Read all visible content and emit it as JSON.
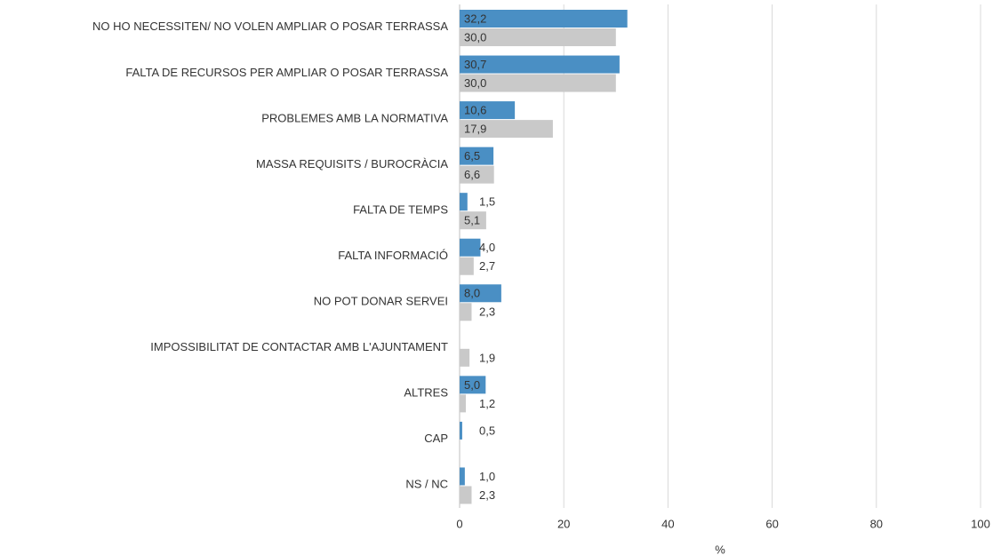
{
  "chart_data": {
    "type": "hbar",
    "categories": [
      "NO HO NECESSITEN/ NO VOLEN AMPLIAR O POSAR TERRASSA",
      "FALTA DE RECURSOS PER AMPLIAR O POSAR TERRASSA",
      "PROBLEMES AMB LA NORMATIVA",
      "MASSA REQUISITS / BUROCRÀCIA",
      "FALTA DE TEMPS",
      "FALTA INFORMACIÓ",
      "NO POT DONAR SERVEI",
      "IMPOSSIBILITAT DE CONTACTAR AMB L'AJUNTAMENT",
      "ALTRES",
      "CAP",
      "NS / NC"
    ],
    "series": [
      {
        "color": "#4a8fc4",
        "values": [
          32.2,
          30.7,
          10.6,
          6.5,
          1.5,
          4.0,
          8.0,
          null,
          5.0,
          0.5,
          1.0
        ],
        "value_labels": [
          "32,2",
          "30,7",
          "10,6",
          "6,5",
          "1,5",
          "4,0",
          "8,0",
          null,
          "5,0",
          "0,5",
          "1,0"
        ]
      },
      {
        "color": "#c9c9c9",
        "values": [
          30.0,
          30.0,
          17.9,
          6.6,
          5.1,
          2.7,
          2.3,
          1.9,
          1.2,
          null,
          2.3
        ],
        "value_labels": [
          "30,0",
          "30,0",
          "17,9",
          "6,6",
          "5,1",
          "2,7",
          "2,3",
          "1,9",
          "1,2",
          null,
          "2,3"
        ]
      }
    ],
    "xlabel": "%",
    "xlim": [
      0,
      100
    ],
    "xticks": [
      0,
      20,
      40,
      60,
      80,
      100
    ],
    "grid": true
  }
}
